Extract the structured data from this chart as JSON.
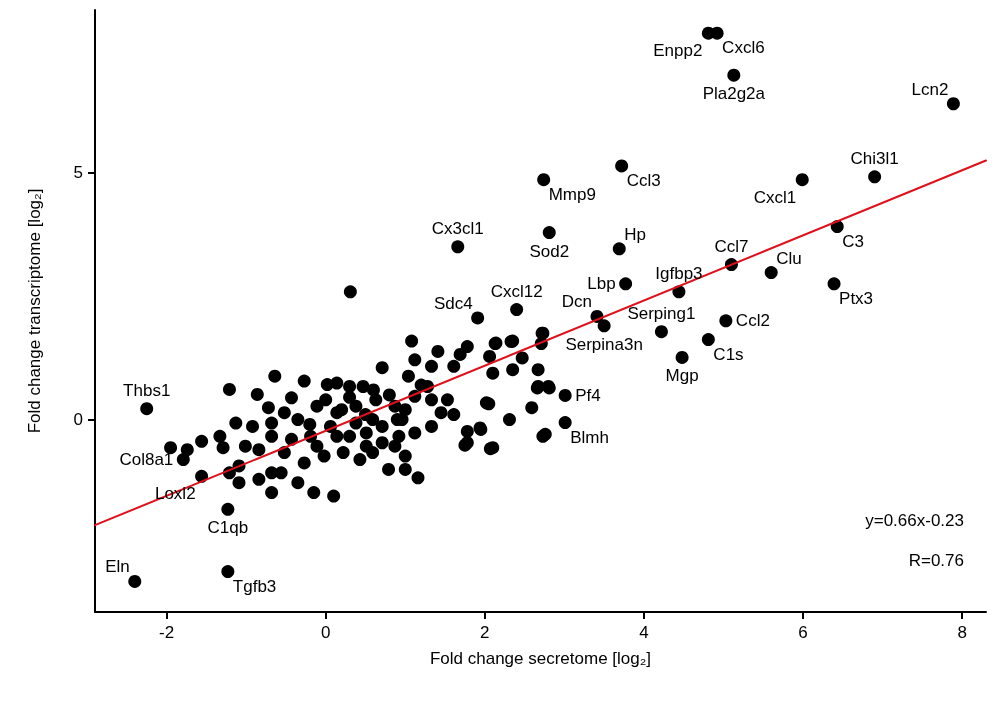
{
  "chart_data": {
    "type": "scatter",
    "xlabel": "Fold change secretome [log₂]",
    "ylabel": "Fold change transcriptome [log₂]",
    "xlim": [
      -2.9,
      8.3
    ],
    "ylim": [
      -3.9,
      8.3
    ],
    "xticks": [
      -2,
      0,
      2,
      4,
      6,
      8
    ],
    "yticks": [
      0,
      5
    ],
    "grid": false,
    "marker": "circle",
    "line_style": "solid",
    "series": [
      {
        "color": "#000000",
        "x": [
          4.81,
          4.92,
          5.13,
          7.89,
          6.9,
          5.99,
          3.72,
          2.74,
          1.66,
          2.81,
          3.69,
          6.43,
          5.1,
          5.6,
          3.77,
          4.44,
          6.39,
          2.4,
          1.91,
          3.41,
          3.5,
          4.22,
          5.03,
          4.81,
          4.48,
          3.01,
          3.01,
          -2.25,
          -1.79,
          -1.56,
          -1.23,
          -2.4,
          -1.23,
          0.31,
          1.08,
          1.41,
          1.78,
          1.69,
          1.12,
          0.71,
          1.33,
          1.61,
          -0.64,
          -0.27,
          0.02,
          0.14,
          0.3,
          0.47,
          -1.21,
          -0.86,
          -0.43,
          -0.72,
          2.14,
          2.35,
          2.72,
          2.06,
          2.47,
          2.1,
          2.35,
          2.67,
          2.67,
          2.8,
          2.59,
          2.31,
          2.02,
          1.94,
          1.78,
          1.78,
          2.1,
          2.76,
          1.61,
          1.53,
          -1.95,
          -1.74,
          -1.56,
          -1.33,
          -1.13,
          -0.92,
          -1.29,
          -1.01,
          -0.68,
          -0.52,
          -0.35,
          -0.11,
          0.14,
          0.38,
          0.63,
          0.87,
          1.12,
          1.33,
          1.45,
          0.96,
          0.71,
          0.51,
          0.3,
          0.06,
          -0.19,
          -0.43,
          -0.68,
          -0.84,
          -1.09,
          -1.21,
          -1.09,
          -0.84,
          -0.68,
          -0.56,
          -0.68,
          -0.35,
          -0.15,
          0.1,
          -0.27,
          -0.02,
          0.22,
          0.43,
          0.59,
          0.87,
          1.0,
          0.79,
          1.0,
          1.16,
          0.71,
          0.51,
          -0.52,
          -0.11,
          1.12,
          1.33,
          0.92,
          1.28,
          1.04,
          0.59,
          0.38,
          0.14,
          2.73,
          2.71,
          2.33,
          2.13,
          2.73,
          2.07,
          2.05,
          1.75,
          1.95,
          2.81,
          2.66,
          0.2,
          0.5,
          0.8,
          1.0,
          0.3,
          -0.2,
          0.6,
          1.2,
          0.9,
          0.0
        ],
        "values": [
          7.83,
          7.83,
          6.98,
          6.4,
          4.92,
          4.86,
          5.14,
          4.86,
          3.5,
          3.79,
          3.46,
          3.91,
          3.14,
          2.98,
          2.75,
          2.59,
          2.75,
          2.23,
          2.06,
          2.09,
          1.9,
          1.78,
          2.0,
          1.62,
          1.26,
          0.49,
          -0.06,
          0.22,
          -0.81,
          -1.15,
          -1.82,
          -3.28,
          -3.08,
          2.59,
          1.59,
          1.38,
          1.48,
          1.32,
          1.21,
          1.05,
          1.08,
          1.08,
          0.88,
          0.78,
          0.71,
          0.74,
          0.67,
          0.67,
          0.61,
          0.51,
          0.44,
          0.24,
          1.55,
          1.59,
          1.75,
          1.28,
          1.25,
          0.94,
          1.01,
          1.01,
          0.67,
          0.67,
          0.24,
          0.0,
          0.34,
          -0.17,
          -0.24,
          -0.47,
          -0.57,
          -0.3,
          0.1,
          0.4,
          -0.57,
          -0.61,
          -0.44,
          -0.34,
          -0.07,
          -0.14,
          -0.57,
          -0.54,
          -0.07,
          0.14,
          0.0,
          0.27,
          0.14,
          0.27,
          0.4,
          0.27,
          0.47,
          0.4,
          0.14,
          0.0,
          -0.14,
          -0.27,
          -0.34,
          -0.14,
          -0.34,
          -0.4,
          -0.34,
          -0.61,
          -0.94,
          -1.08,
          -1.28,
          -1.21,
          -1.08,
          -1.08,
          -1.48,
          -1.28,
          -1.48,
          -1.55,
          -0.88,
          -0.74,
          -0.67,
          -0.81,
          -0.67,
          -0.54,
          -0.74,
          -1.01,
          -1.01,
          -1.18,
          -0.47,
          -0.54,
          -0.67,
          -0.54,
          -0.27,
          -0.14,
          -0.34,
          0.67,
          0.88,
          0.0,
          -0.07,
          -0.34,
          1.75,
          1.54,
          1.58,
          1.54,
          -0.34,
          -0.59,
          0.32,
          -0.52,
          -0.2,
          0.64,
          0.64,
          0.2,
          0.1,
          0.5,
          0.2,
          0.45,
          -0.1,
          0.6,
          0.7,
          0.0,
          0.4
        ]
      },
      {
        "type": "line",
        "marker": "none",
        "color": "#e0101a",
        "x": [
          -2.9,
          8.3
        ],
        "values": [
          -2.14,
          5.25
        ]
      }
    ],
    "annotations": [
      {
        "text": "Enpp2",
        "x": 4.81,
        "y": 7.83
      },
      {
        "text": "Cxcl6",
        "x": 4.92,
        "y": 7.83
      },
      {
        "text": "Pla2g2a",
        "x": 5.13,
        "y": 6.98
      },
      {
        "text": "Lcn2",
        "x": 7.89,
        "y": 6.4
      },
      {
        "text": "Chi3l1",
        "x": 6.9,
        "y": 4.92
      },
      {
        "text": "Cxcl1",
        "x": 5.99,
        "y": 4.86
      },
      {
        "text": "Ccl3",
        "x": 3.72,
        "y": 5.14
      },
      {
        "text": "Mmp9",
        "x": 2.74,
        "y": 4.86
      },
      {
        "text": "Cx3cl1",
        "x": 1.66,
        "y": 3.5
      },
      {
        "text": "Sod2",
        "x": 2.81,
        "y": 3.79
      },
      {
        "text": "Hp",
        "x": 3.69,
        "y": 3.46
      },
      {
        "text": "C3",
        "x": 6.43,
        "y": 3.91
      },
      {
        "text": "Ccl7",
        "x": 5.1,
        "y": 3.14
      },
      {
        "text": "Clu",
        "x": 5.6,
        "y": 2.98
      },
      {
        "text": "Lbp",
        "x": 3.77,
        "y": 2.75
      },
      {
        "text": "Igfbp3",
        "x": 4.44,
        "y": 2.59
      },
      {
        "text": "Ptx3",
        "x": 6.39,
        "y": 2.75
      },
      {
        "text": "Cxcl12",
        "x": 2.4,
        "y": 2.23
      },
      {
        "text": "Sdc4",
        "x": 1.91,
        "y": 2.06
      },
      {
        "text": "Dcn",
        "x": 3.41,
        "y": 2.09
      },
      {
        "text": "Serpina3n",
        "x": 3.5,
        "y": 1.9
      },
      {
        "text": "Serping1",
        "x": 4.22,
        "y": 1.78
      },
      {
        "text": "Ccl2",
        "x": 5.03,
        "y": 2.0
      },
      {
        "text": "C1s",
        "x": 4.81,
        "y": 1.62
      },
      {
        "text": "Mgp",
        "x": 4.48,
        "y": 1.26
      },
      {
        "text": "Pf4",
        "x": 3.01,
        "y": 0.49
      },
      {
        "text": "Blmh",
        "x": 3.01,
        "y": -0.06
      },
      {
        "text": "Thbs1",
        "x": -2.25,
        "y": 0.22
      },
      {
        "text": "Col8a1",
        "x": -1.79,
        "y": -0.81
      },
      {
        "text": "Loxl2",
        "x": -1.56,
        "y": -1.15
      },
      {
        "text": "C1qb",
        "x": -1.23,
        "y": -1.82
      },
      {
        "text": "Eln",
        "x": -2.4,
        "y": -3.28
      },
      {
        "text": "Tgfb3",
        "x": -1.23,
        "y": -3.08
      },
      "y=0.66x-0.23",
      "R=0.76"
    ]
  }
}
